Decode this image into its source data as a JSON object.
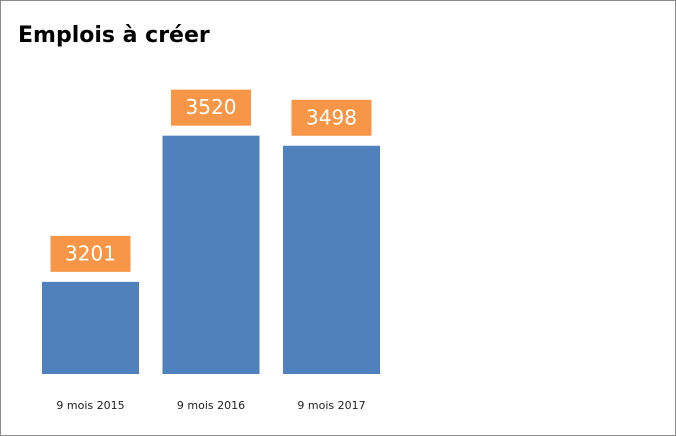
{
  "chart_data": {
    "type": "bar",
    "title": "Emplois à créer",
    "categories": [
      "9 mois 2015",
      "9 mois 2016",
      "9 mois 2017"
    ],
    "values": [
      3201,
      3520,
      3498
    ],
    "color": "#4f81bd",
    "label_color": "#f79646",
    "ylim": [
      3000,
      3600
    ]
  }
}
